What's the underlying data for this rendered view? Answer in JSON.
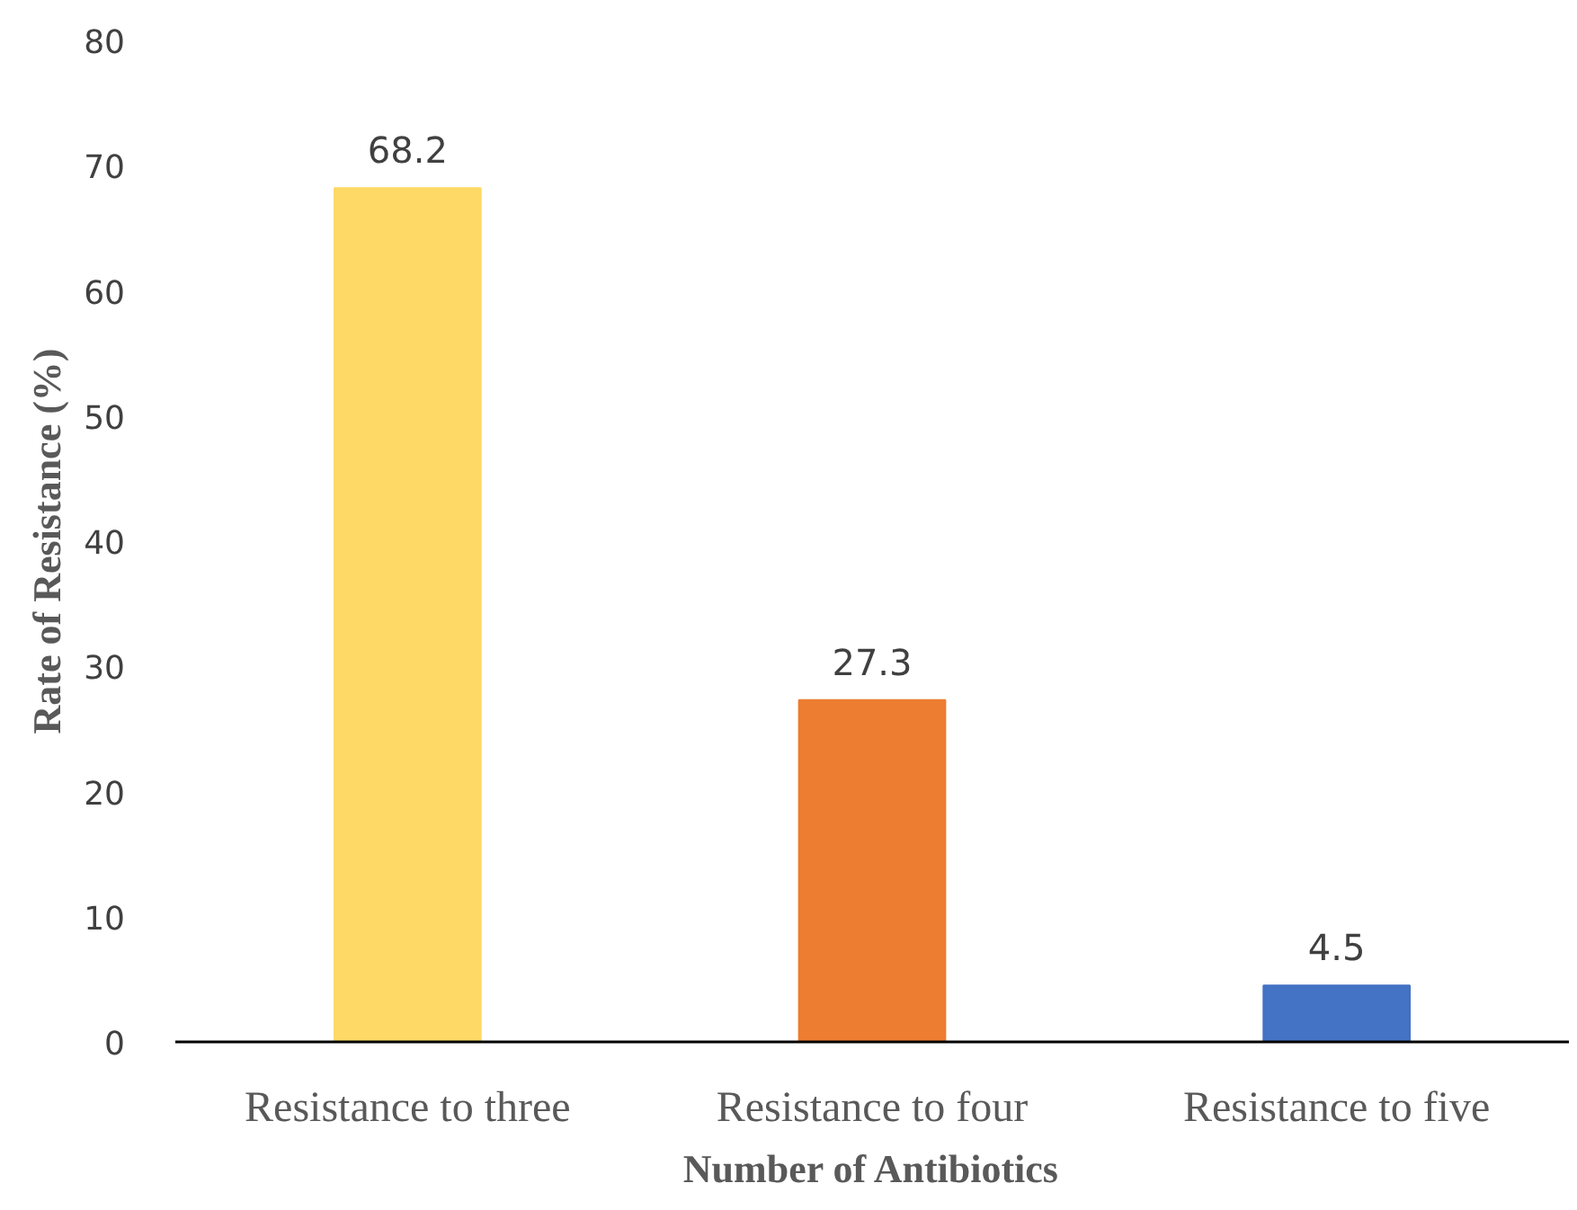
{
  "chart_data": {
    "type": "bar",
    "xlabel": "Number of Antibiotics",
    "ylabel": "Rate of Resistance (%)",
    "categories": [
      "Resistance to three",
      "Resistance to four",
      "Resistance to five"
    ],
    "values": [
      68.2,
      27.3,
      4.5
    ],
    "colors": [
      "#ffd966",
      "#ed7d31",
      "#4472c4"
    ],
    "ylim": [
      0,
      80
    ],
    "yticks": [
      0,
      10,
      20,
      30,
      40,
      50,
      60,
      70,
      80
    ],
    "data_labels": true,
    "grid": false
  }
}
